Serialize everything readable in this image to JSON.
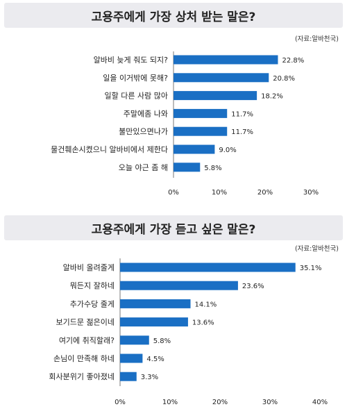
{
  "chart_data": [
    {
      "type": "bar",
      "orientation": "horizontal",
      "title": "고용주에게 가장 상처 받는 말은?",
      "source": "(자료:알바천국)",
      "categories": [
        "알바비 늦게 줘도 되지?",
        "일을 이거밖에 못해?",
        "일할 다른 사람 많아",
        "주말에좀 나와",
        "불만있으면나가",
        "물건훼손시켰으니 알바비에서 제한다",
        "오늘 야근 좀 해"
      ],
      "values": [
        22.8,
        20.8,
        18.2,
        11.7,
        11.7,
        9.0,
        5.8
      ],
      "value_labels": [
        "22.8%",
        "20.8%",
        "18.2%",
        "11.7%",
        "11.7%",
        "9.0%",
        "5.8%"
      ],
      "x_ticks": [
        "0%",
        "10%",
        "20%",
        "30%"
      ],
      "xlim": [
        0,
        30
      ],
      "bar_color": "#1a6fc4",
      "grid": false
    },
    {
      "type": "bar",
      "orientation": "horizontal",
      "title": "고용주에게 가장 듣고 싶은 말은?",
      "source": "(자료:알바천국)",
      "categories": [
        "알바비 올려줄게",
        "뭐든지 잘하네",
        "추가수당 줄게",
        "보기드문 젊은이네",
        "여기에 취직할래?",
        "손님이 만족해 하네",
        "회사분위기 좋아졌네"
      ],
      "values": [
        35.1,
        23.6,
        14.1,
        13.6,
        5.8,
        4.5,
        3.3
      ],
      "value_labels": [
        "35.1%",
        "23.6%",
        "14.1%",
        "13.6%",
        "5.8%",
        "4.5%",
        "3.3%"
      ],
      "x_ticks": [
        "0%",
        "10%",
        "20%",
        "30%",
        "40%"
      ],
      "xlim": [
        0,
        40
      ],
      "bar_color": "#1a6fc4",
      "grid": false
    }
  ]
}
